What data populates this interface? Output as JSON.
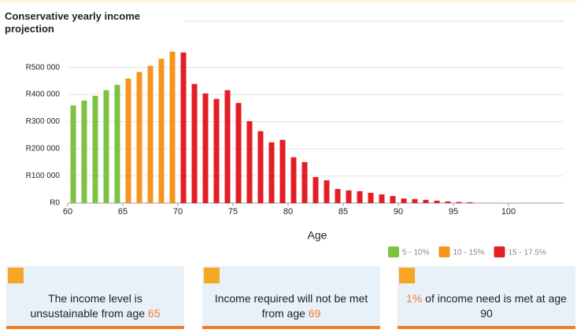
{
  "chart_data": {
    "type": "bar",
    "title": "Conservative yearly income projection",
    "x_label": "Age",
    "x": [
      60,
      61,
      62,
      63,
      64,
      65,
      66,
      67,
      68,
      69,
      70,
      71,
      72,
      73,
      74,
      75,
      76,
      77,
      78,
      79,
      80,
      81,
      82,
      83,
      84,
      85,
      86,
      87,
      88,
      89,
      90,
      91,
      92,
      93,
      94,
      95,
      96
    ],
    "series": [
      {
        "name": "5 - 10%",
        "color": "#7dc242",
        "values": [
          360000,
          378000,
          395000,
          416000,
          436000,
          null,
          null,
          null,
          null,
          null,
          null,
          null,
          null,
          null,
          null,
          null,
          null,
          null,
          null,
          null,
          null,
          null,
          null,
          null,
          null,
          null,
          null,
          null,
          null,
          null,
          null,
          null,
          null,
          null,
          null,
          null,
          null
        ]
      },
      {
        "name": "10 - 15%",
        "color": "#f7941d",
        "values": [
          null,
          null,
          null,
          null,
          null,
          459000,
          483000,
          506000,
          532000,
          558000,
          null,
          null,
          null,
          null,
          null,
          null,
          null,
          null,
          null,
          null,
          null,
          null,
          null,
          null,
          null,
          null,
          null,
          null,
          null,
          null,
          null,
          null,
          null,
          null,
          null,
          null,
          null
        ]
      },
      {
        "name": "15 - 17.5%",
        "color": "#e31e24",
        "values": [
          null,
          null,
          null,
          null,
          null,
          null,
          null,
          null,
          null,
          null,
          555000,
          439000,
          404000,
          384000,
          416000,
          369000,
          302000,
          265000,
          224000,
          233000,
          169000,
          151000,
          96000,
          84000,
          52000,
          47000,
          44000,
          38000,
          32000,
          26000,
          17000,
          15000,
          12000,
          9000,
          6000,
          4000,
          3000
        ]
      }
    ],
    "xlim": [
      60,
      105
    ],
    "xticks": [
      60,
      65,
      70,
      75,
      80,
      85,
      90,
      95,
      100
    ],
    "ylim": [
      0,
      670000
    ],
    "yticks": [
      {
        "value": 0,
        "label": "R0"
      },
      {
        "value": 100000,
        "label": "R100 000"
      },
      {
        "value": 200000,
        "label": "R200 000"
      },
      {
        "value": 300000,
        "label": "R300 000"
      },
      {
        "value": 400000,
        "label": "R400 000"
      },
      {
        "value": 500000,
        "label": "R500 000"
      }
    ],
    "grid": true,
    "legend": "bottom-right"
  },
  "cards": [
    {
      "text": "The income level is unsustainable from age",
      "highlight": "65"
    },
    {
      "text": "Income required will not be met from age",
      "highlight": "69"
    },
    {
      "highlight": "1%",
      "after": "of income need is met at age 90"
    }
  ]
}
